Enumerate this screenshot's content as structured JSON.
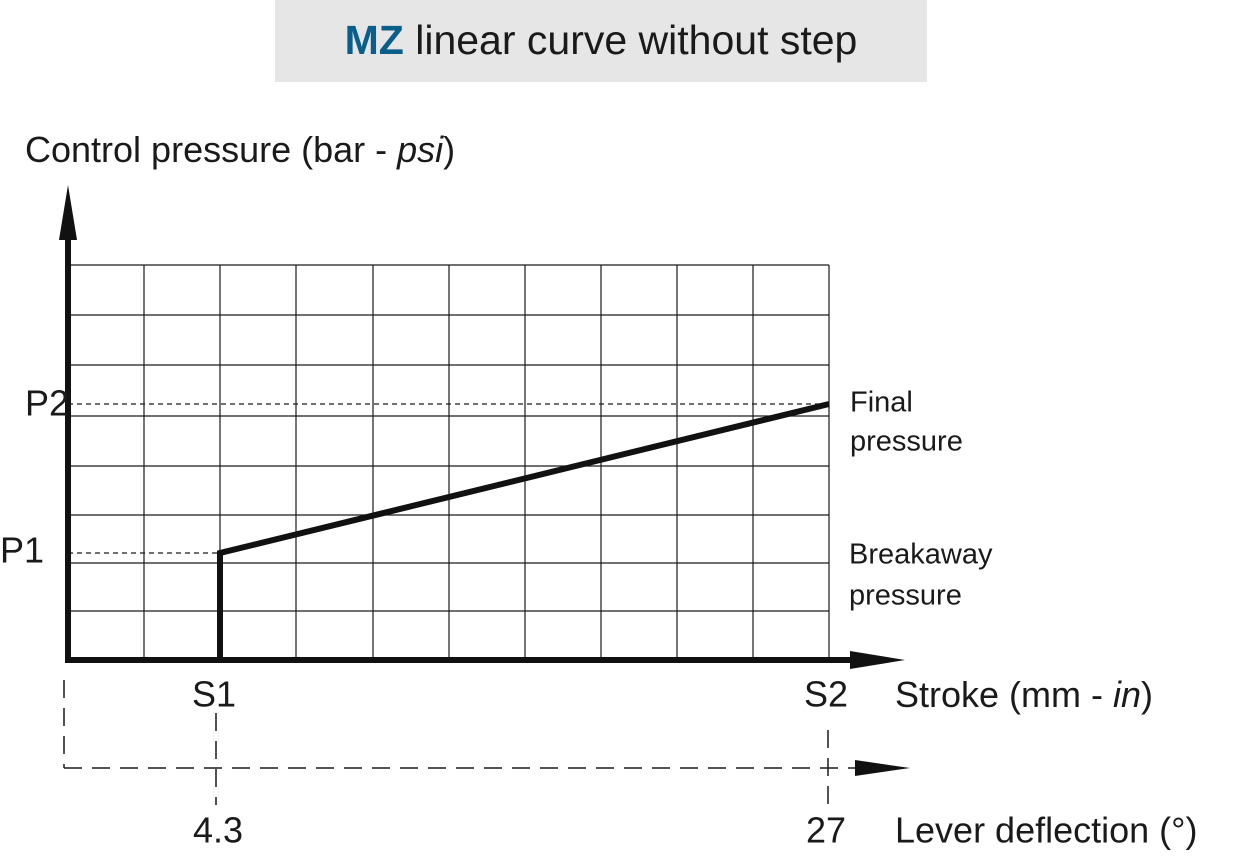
{
  "header": {
    "title_accent": "MZ",
    "title_rest": " linear curve without step"
  },
  "y_axis": {
    "label_start": "Control pressure (bar - ",
    "label_italic": "psi",
    "label_end": ")",
    "levels": [
      "P2",
      "P1"
    ]
  },
  "x_axis": {
    "label_start": "Stroke (mm - ",
    "label_italic": "in",
    "label_end": ")",
    "levels": [
      "S1",
      "S2"
    ]
  },
  "lever_axis": {
    "label": "Lever deflection (°)",
    "levels": [
      "4.3",
      "27"
    ]
  },
  "annotations": {
    "final": [
      "Final",
      "pressure"
    ],
    "breakaway": [
      "Breakaway",
      "pressure"
    ]
  }
}
